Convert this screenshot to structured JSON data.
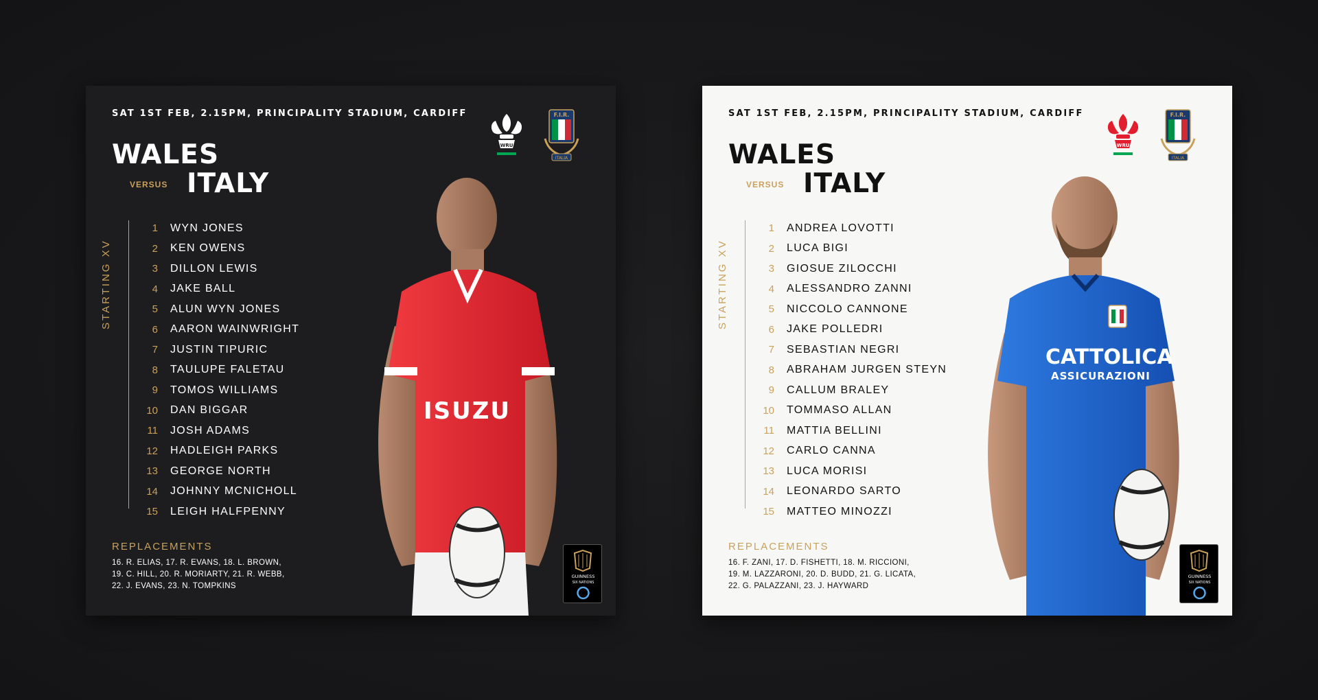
{
  "colors": {
    "background": "#19191b",
    "gold": "#c9a15b",
    "wales_red": "#e21d2d",
    "italy_blue": "#1f63c9",
    "dark_card": "#1d1d1f",
    "light_card": "#f7f7f6"
  },
  "cards": [
    {
      "theme": "dark",
      "info": "SAT 1ST FEB, 2.15PM, PRINCIPALITY STADIUM, CARDIFF",
      "home": "WALES",
      "versus": "VERSUS",
      "away": "ITALY",
      "section_label": "STARTING XV",
      "lineup": [
        {
          "num": "1",
          "name": "WYN JONES"
        },
        {
          "num": "2",
          "name": "KEN OWENS"
        },
        {
          "num": "3",
          "name": "DILLON LEWIS"
        },
        {
          "num": "4",
          "name": "JAKE BALL"
        },
        {
          "num": "5",
          "name": "ALUN WYN JONES"
        },
        {
          "num": "6",
          "name": "AARON WAINWRIGHT"
        },
        {
          "num": "7",
          "name": "JUSTIN TIPURIC"
        },
        {
          "num": "8",
          "name": "TAULUPE FALETAU"
        },
        {
          "num": "9",
          "name": "TOMOS WILLIAMS"
        },
        {
          "num": "10",
          "name": "DAN BIGGAR"
        },
        {
          "num": "11",
          "name": "JOSH ADAMS"
        },
        {
          "num": "12",
          "name": "HADLEIGH PARKS"
        },
        {
          "num": "13",
          "name": "GEORGE NORTH"
        },
        {
          "num": "14",
          "name": "JOHNNY MCNICHOLL"
        },
        {
          "num": "15",
          "name": "LEIGH HALFPENNY"
        }
      ],
      "replacements_title": "REPLACEMENTS",
      "replacements": [
        "16. R. ELIAS, 17. R. EVANS, 18. L. BROWN,",
        "19. C. HILL, 20. R. MORIARTY, 21. R. WEBB,",
        "22. J. EVANS, 23. N. TOMPKINS"
      ],
      "logo_left": "WRU",
      "logo_right_top": "F.I.R.",
      "logo_right_bottom": "ITALIA",
      "shirt_sponsor": "ISUZU",
      "sponsor_lines": [
        "GUINNESS",
        "SIX NATIONS"
      ]
    },
    {
      "theme": "light",
      "info": "SAT 1ST FEB, 2.15PM, PRINCIPALITY STADIUM, CARDIFF",
      "home": "WALES",
      "versus": "VERSUS",
      "away": "ITALY",
      "section_label": "STARTING XV",
      "lineup": [
        {
          "num": "1",
          "name": "ANDREA LOVOTTI"
        },
        {
          "num": "2",
          "name": "LUCA BIGI"
        },
        {
          "num": "3",
          "name": "GIOSUE ZILOCCHI"
        },
        {
          "num": "4",
          "name": "ALESSANDRO ZANNI"
        },
        {
          "num": "5",
          "name": "NICCOLO CANNONE"
        },
        {
          "num": "6",
          "name": "JAKE POLLEDRI"
        },
        {
          "num": "7",
          "name": "SEBASTIAN NEGRI"
        },
        {
          "num": "8",
          "name": "ABRAHAM JURGEN STEYN"
        },
        {
          "num": "9",
          "name": "CALLUM BRALEY"
        },
        {
          "num": "10",
          "name": "TOMMASO ALLAN"
        },
        {
          "num": "11",
          "name": "MATTIA BELLINI"
        },
        {
          "num": "12",
          "name": "CARLO CANNA"
        },
        {
          "num": "13",
          "name": "LUCA MORISI"
        },
        {
          "num": "14",
          "name": "LEONARDO SARTO"
        },
        {
          "num": "15",
          "name": "MATTEO MINOZZI"
        }
      ],
      "replacements_title": "REPLACEMENTS",
      "replacements": [
        "16. F. ZANI, 17. D. FISHETTI, 18. M. RICCIONI,",
        "19. M. LAZZARONI, 20. D. BUDD, 21. G. LICATA,",
        "22. G. PALAZZANI, 23. J. HAYWARD"
      ],
      "logo_left": "WRU",
      "logo_right_top": "F.I.R.",
      "logo_right_bottom": "ITALIA",
      "shirt_sponsor": "CATTOLICA",
      "shirt_sponsor_sub": "ASSICURAZIONI",
      "sponsor_lines": [
        "GUINNESS",
        "SIX NATIONS"
      ]
    }
  ]
}
